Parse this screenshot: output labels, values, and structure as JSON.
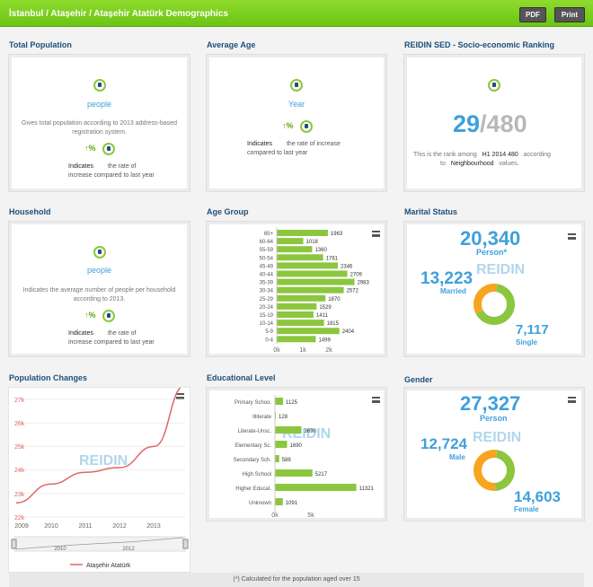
{
  "header": {
    "title": "İstanbul / Ataşehir / Ataşehir Atatürk Demographics",
    "pdf_label": "PDF",
    "print_label": "Print"
  },
  "total_population": {
    "heading": "Total Population",
    "unit": "people",
    "description": "Gives total population according to 2013 address-based registration system.",
    "change_symbol": "↑%",
    "indicates_label": "Indicates",
    "indicates_text": "the rate of increase compared to last year"
  },
  "average_age": {
    "heading": "Average Age",
    "unit": "Year",
    "change_symbol": "↑%",
    "indicates_label": "Indicates",
    "indicates_text": "the rate of increase compared to last year"
  },
  "sed_ranking": {
    "heading": "REIDIN SED - Socio-economic Ranking",
    "rank": "29",
    "total": "/480",
    "line1a": "This is the rank among",
    "line1b": "H1 2014 480",
    "line1c": "according",
    "line2a": "to",
    "line2b": "Neighbourhood",
    "line2c": "values."
  },
  "household": {
    "heading": "Household",
    "unit": "people",
    "description": "Indicates the average number of people per household according to 2013.",
    "change_symbol": "↑%",
    "indicates_label": "Indicates",
    "indicates_text": "the rate of increase compared to last year"
  },
  "age_group": {
    "heading": "Age Group",
    "x_ticks": [
      "0k",
      "1k",
      "2k"
    ]
  },
  "marital_status": {
    "heading": "Marital Status",
    "total": "20,340",
    "total_label": "Person*",
    "married_value": "13,223",
    "married_label": "Married",
    "single_value": "7,117",
    "single_label": "Single",
    "watermark": "REIDIN"
  },
  "population_changes": {
    "heading": "Population Changes",
    "y_ticks": [
      "27k",
      "26k",
      "25k",
      "24k",
      "23k",
      "22k"
    ],
    "x_ticks": [
      "2009",
      "2010",
      "2011",
      "2012",
      "2013"
    ],
    "nav_ticks": [
      "2010",
      "2012"
    ],
    "legend": "Ataşehir Atatürk",
    "watermark": "REIDIN"
  },
  "educational_level": {
    "heading": "Educational Level",
    "x_ticks": [
      "0k",
      "5k"
    ],
    "watermark": "REIDIN"
  },
  "gender": {
    "heading": "Gender",
    "total": "27,327",
    "total_label": "Person",
    "male_value": "12,724",
    "male_label": "Male",
    "female_value": "14,603",
    "female_label": "Female",
    "watermark": "REIDIN"
  },
  "footer": {
    "note": "(*) Calculated for the population aged over 15"
  },
  "colors": {
    "accent_green": "#8cc63f",
    "blue": "#3ea0dc",
    "orange": "#f7a520",
    "line_red": "#e06666"
  },
  "chart_data": [
    {
      "type": "bar",
      "title": "Age Group",
      "orientation": "horizontal",
      "categories": [
        "65+",
        "60-64",
        "55-59",
        "50-54",
        "45-49",
        "40-44",
        "35-39",
        "30-34",
        "25-29",
        "20-24",
        "15-19",
        "10-14",
        "5-9",
        "0-4"
      ],
      "values": [
        1963,
        1018,
        1360,
        1781,
        2346,
        2709,
        2983,
        2572,
        1870,
        1529,
        1411,
        1815,
        2404,
        1499
      ],
      "xlim": [
        0,
        3000
      ]
    },
    {
      "type": "bar",
      "title": "Educational Level",
      "orientation": "horizontal",
      "categories": [
        "Primary Schoo.",
        "Illiterate",
        "Literate-Unsc.",
        "Elementary Sc.",
        "Secondary Sch.",
        "High School",
        "Higher Educat.",
        "Unknown"
      ],
      "values": [
        1125,
        128,
        3690,
        1690,
        588,
        5217,
        11321,
        1091
      ],
      "xlim": [
        0,
        12000
      ]
    },
    {
      "type": "pie",
      "title": "Marital Status",
      "categories": [
        "Married",
        "Single"
      ],
      "values": [
        13223,
        7117
      ]
    },
    {
      "type": "pie",
      "title": "Gender",
      "categories": [
        "Male",
        "Female"
      ],
      "values": [
        12724,
        14603
      ]
    },
    {
      "type": "line",
      "title": "Population Changes",
      "x": [
        2009,
        2010,
        2011,
        2012,
        2013,
        2013.9
      ],
      "series": [
        {
          "name": "Ataşehir Atatürk",
          "values": [
            22600,
            23400,
            23900,
            24100,
            25000,
            27600
          ]
        }
      ],
      "ylim": [
        22000,
        27000
      ]
    }
  ]
}
